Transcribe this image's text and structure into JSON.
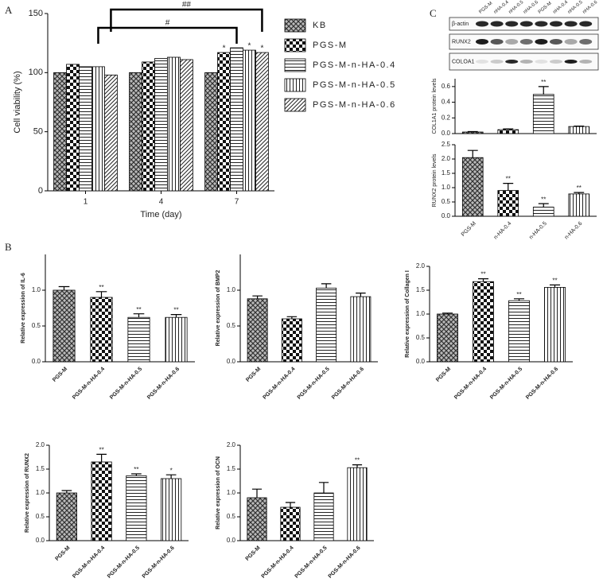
{
  "panel_labels": [
    "A",
    "B",
    "C"
  ],
  "blot": {
    "lanes": [
      "PGS-M",
      "nHA-0.4",
      "nHA-0.5",
      "nHA-0.6",
      "PGS-M",
      "nHA-0.4",
      "nHA-0.5",
      "nHA-0.6"
    ],
    "rows": [
      "β-actin",
      "RUNX2",
      "COLOA1"
    ]
  },
  "chart_data": [
    {
      "type": "grouped-bar",
      "xlabel": "Time (day)",
      "ylabel": "Cell viability (%)",
      "categories": [
        "1",
        "4",
        "7"
      ],
      "ylim": [
        0,
        150
      ],
      "yticks": [
        0,
        50,
        100,
        150
      ],
      "series": [
        {
          "name": "KB",
          "pattern": "cross",
          "values": [
            100,
            100,
            100
          ],
          "annotations": [
            null,
            null,
            null
          ]
        },
        {
          "name": "PGS-M",
          "pattern": "check",
          "values": [
            107,
            109,
            117
          ],
          "annotations": [
            null,
            null,
            "*"
          ]
        },
        {
          "name": "PGS-M-n-HA-0.4",
          "pattern": "hlines",
          "values": [
            105,
            112,
            121
          ],
          "annotations": [
            null,
            null,
            null
          ]
        },
        {
          "name": "PGS-M-n-HA-0.5",
          "pattern": "vlines",
          "values": [
            105,
            113,
            119
          ],
          "annotations": [
            null,
            null,
            "*"
          ]
        },
        {
          "name": "PGS-M-n-HA-0.6",
          "pattern": "diag",
          "values": [
            98,
            111,
            117
          ],
          "annotations": [
            null,
            null,
            "*"
          ]
        }
      ],
      "brackets": [
        {
          "label": "##"
        },
        {
          "label": "#"
        }
      ],
      "legend": "right"
    },
    {
      "type": "bar",
      "ylabel": "COL1A1 protein levels",
      "categories": [
        null,
        null,
        null,
        null
      ],
      "values": [
        0.02,
        0.05,
        0.5,
        0.09
      ],
      "errors": [
        0.005,
        0.01,
        0.1,
        0.005
      ],
      "annotations": [
        null,
        null,
        "**",
        null
      ],
      "patterns": [
        "cross",
        "check",
        "hlines",
        "vlines"
      ],
      "ylim": [
        0,
        0.7
      ],
      "yticks": [
        {
          "value": 0,
          "label": "0.0"
        },
        0.2,
        0.4,
        0.6
      ]
    },
    {
      "type": "bar",
      "ylabel": "RUNX2 protein levels",
      "categories": [
        "PGS-M",
        "n-HA-0.4",
        "n-HA-0.5",
        "n-HA-0.6"
      ],
      "values": [
        2.05,
        0.9,
        0.32,
        0.78
      ],
      "errors": [
        0.25,
        0.25,
        0.12,
        0.05
      ],
      "annotations": [
        null,
        "**",
        "**",
        "**"
      ],
      "patterns": [
        "cross",
        "check",
        "hlines",
        "vlines"
      ],
      "ylim": [
        0,
        2.5
      ],
      "yticks": [
        {
          "value": 0,
          "label": "0.0"
        },
        0.5,
        {
          "value": 1,
          "label": "1.0"
        },
        1.5,
        {
          "value": 2,
          "label": "2.0"
        },
        2.5
      ]
    },
    {
      "type": "bar",
      "ylabel": "Relative expression of IL-6",
      "categories": [
        "PGS-M",
        "PGS-M-n-HA-0.4",
        "PGS-M-n-HA-0.5",
        "PGS-M-n-HA-0.6"
      ],
      "values": [
        1.0,
        0.9,
        0.62,
        0.62
      ],
      "errors": [
        0.05,
        0.08,
        0.05,
        0.04
      ],
      "annotations": [
        null,
        "**",
        "**",
        "**"
      ],
      "patterns": [
        "cross",
        "check",
        "hlines",
        "vlines"
      ],
      "ylim": [
        0,
        1.5
      ],
      "yticks": [
        {
          "value": 0,
          "label": "0.0"
        },
        0.5,
        {
          "value": 1,
          "label": "1.0"
        }
      ]
    },
    {
      "type": "bar",
      "ylabel": "Relative expression of BMP2",
      "categories": [
        "PGS-M",
        "PGS-M-n-HA-0.4",
        "PGS-M-n-HA-0.5",
        "PGS-M-n-HA-0.6"
      ],
      "values": [
        0.88,
        0.6,
        1.03,
        0.91
      ],
      "errors": [
        0.04,
        0.03,
        0.06,
        0.05
      ],
      "annotations": [
        null,
        null,
        null,
        null
      ],
      "patterns": [
        "cross",
        "check",
        "hlines",
        "vlines"
      ],
      "ylim": [
        0,
        1.5
      ],
      "yticks": [
        {
          "value": 0,
          "label": "0.0"
        },
        0.5,
        {
          "value": 1,
          "label": "1.0"
        }
      ]
    },
    {
      "type": "bar",
      "ylabel": "Relative expression of Collagen I",
      "categories": [
        "PGS-M",
        "PGS-M-n-HA-0.4",
        "PGS-M-n-HA-0.5",
        "PGS-M-n-HA-0.6"
      ],
      "values": [
        1.0,
        1.68,
        1.28,
        1.56
      ],
      "errors": [
        0.02,
        0.06,
        0.04,
        0.05
      ],
      "annotations": [
        null,
        "**",
        "**",
        "**"
      ],
      "patterns": [
        "cross",
        "check",
        "hlines",
        "vlines"
      ],
      "ylim": [
        0,
        2
      ],
      "yticks": [
        {
          "value": 0,
          "label": "0.0"
        },
        0.5,
        {
          "value": 1,
          "label": "1.0"
        },
        1.5,
        {
          "value": 2,
          "label": "2.0"
        }
      ]
    },
    {
      "type": "bar",
      "ylabel": "Relative expression of RUNX2",
      "categories": [
        "PGS-M",
        "PGS-M-n-HA-0.4",
        "PGS-M-n-HA-0.5",
        "PGS-M-n-HA-0.6"
      ],
      "values": [
        1.0,
        1.65,
        1.36,
        1.3
      ],
      "errors": [
        0.05,
        0.16,
        0.04,
        0.08
      ],
      "annotations": [
        null,
        "**",
        "**",
        "*"
      ],
      "patterns": [
        "cross",
        "check",
        "hlines",
        "vlines"
      ],
      "ylim": [
        0,
        2
      ],
      "yticks": [
        {
          "value": 0,
          "label": "0.0"
        },
        0.5,
        {
          "value": 1,
          "label": "1.0"
        },
        1.5,
        {
          "value": 2,
          "label": "2.0"
        }
      ]
    },
    {
      "type": "bar",
      "ylabel": "Relative expression of OCN",
      "categories": [
        "PGS-M",
        "PGS-M-n-HA-0.4",
        "PGS-M-n-HA-0.5",
        "PGS-M-n-HA-0.6"
      ],
      "values": [
        0.9,
        0.7,
        1.0,
        1.53
      ],
      "errors": [
        0.18,
        0.1,
        0.22,
        0.06
      ],
      "annotations": [
        null,
        null,
        null,
        "**"
      ],
      "patterns": [
        "cross",
        "check",
        "hlines",
        "vlines"
      ],
      "ylim": [
        0,
        2
      ],
      "yticks": [
        {
          "value": 0,
          "label": "0.0"
        },
        0.5,
        {
          "value": 1,
          "label": "1.0"
        },
        1.5,
        {
          "value": 2,
          "label": "2.0"
        }
      ]
    }
  ]
}
